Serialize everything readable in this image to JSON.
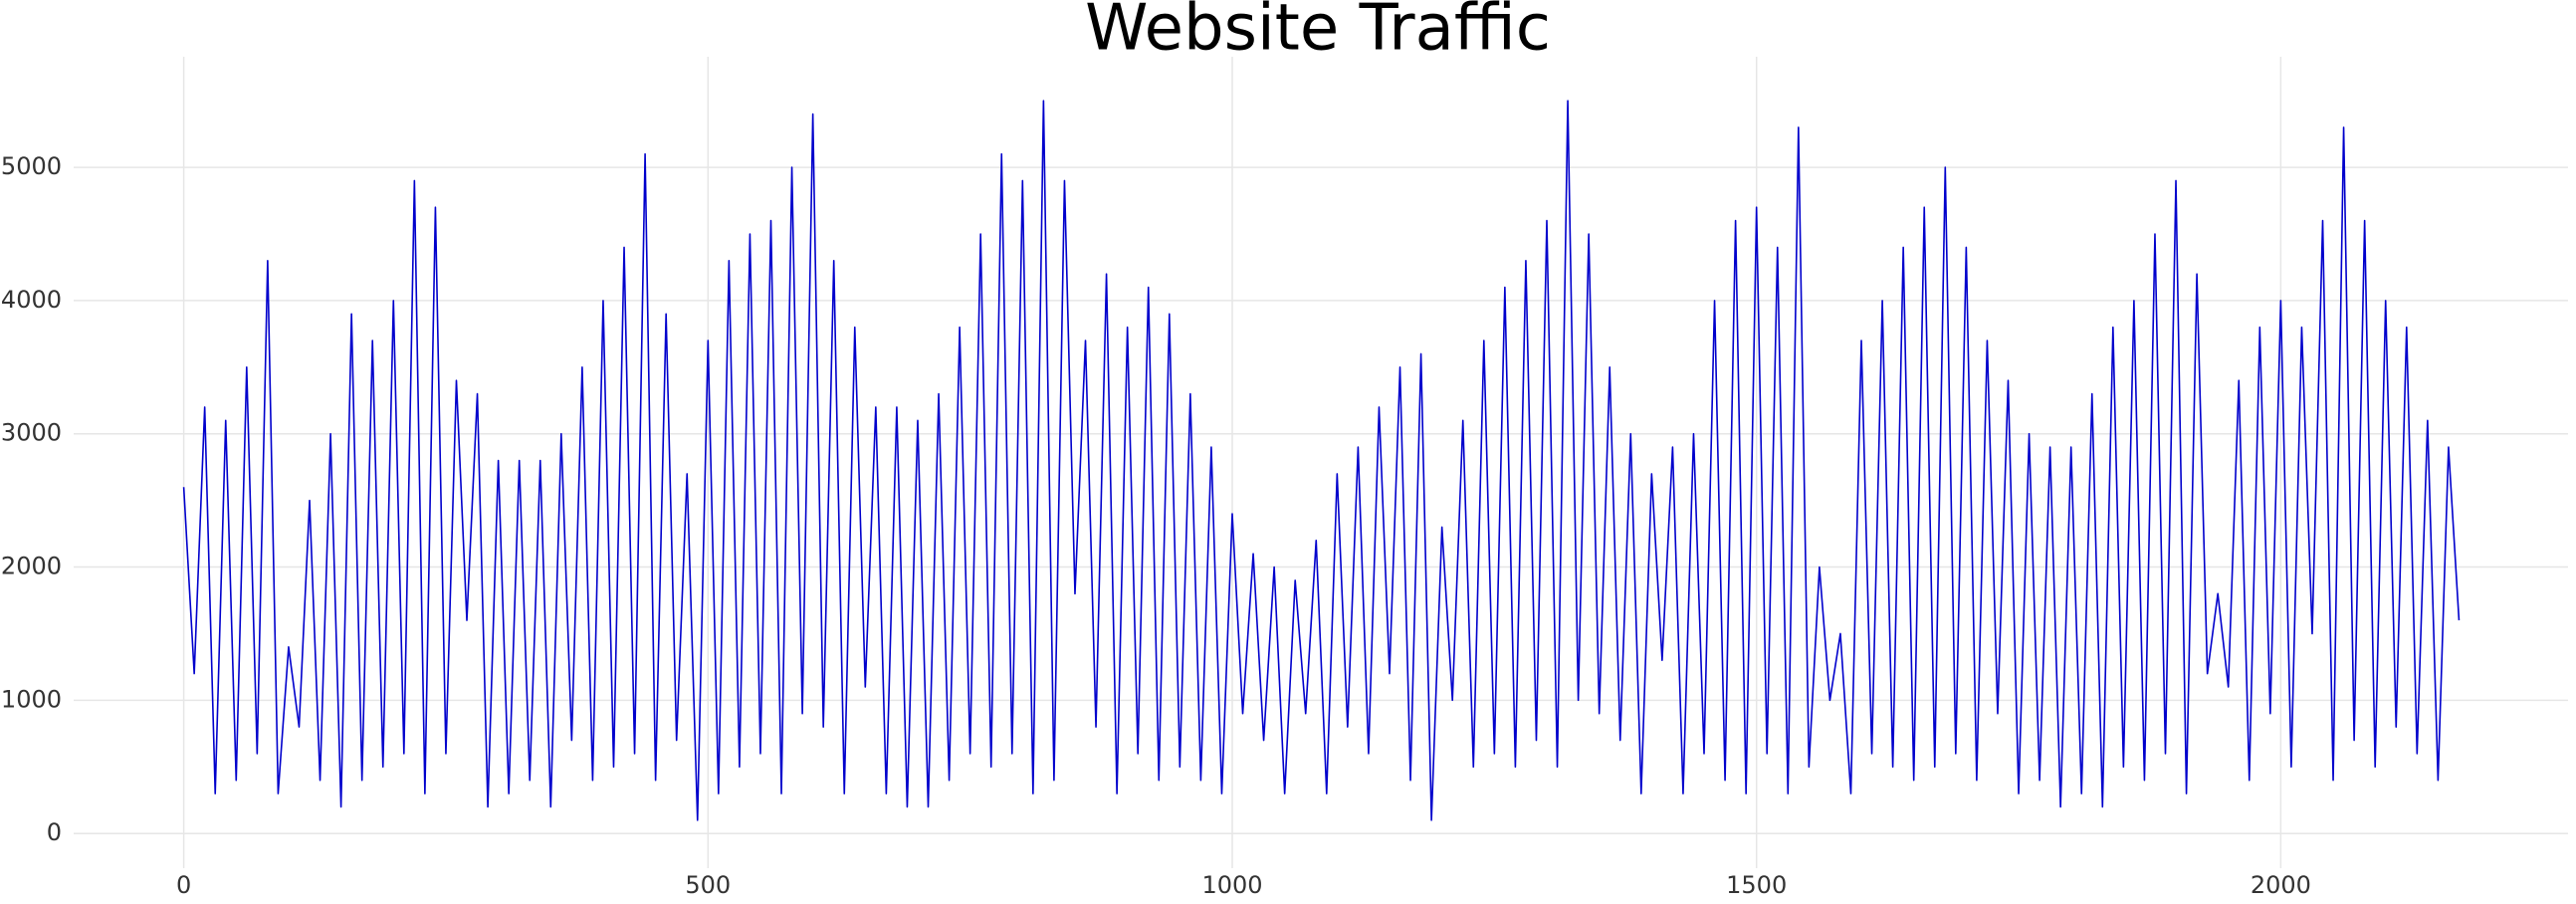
{
  "chart_data": {
    "type": "line",
    "title": "Website Traffic",
    "color": "#0000cc",
    "grid": true,
    "xlim": [
      -105,
      2274
    ],
    "ylim": [
      -260,
      5830
    ],
    "xticks": [
      0,
      500,
      1000,
      1500,
      2000
    ],
    "yticks": [
      0,
      1000,
      2000,
      3000,
      4000,
      5000
    ],
    "x": [
      0,
      10,
      20,
      30,
      40,
      50,
      60,
      70,
      80,
      90,
      100,
      110,
      120,
      130,
      140,
      150,
      160,
      170,
      180,
      190,
      200,
      210,
      220,
      230,
      240,
      250,
      260,
      270,
      280,
      290,
      300,
      310,
      320,
      330,
      340,
      350,
      360,
      370,
      380,
      390,
      400,
      410,
      420,
      430,
      440,
      450,
      460,
      470,
      480,
      490,
      500,
      510,
      520,
      530,
      540,
      550,
      560,
      570,
      580,
      590,
      600,
      610,
      620,
      630,
      640,
      650,
      660,
      670,
      680,
      690,
      700,
      710,
      720,
      730,
      740,
      750,
      760,
      770,
      780,
      790,
      800,
      810,
      820,
      830,
      840,
      850,
      860,
      870,
      880,
      890,
      900,
      910,
      920,
      930,
      940,
      950,
      960,
      970,
      980,
      990,
      1000,
      1010,
      1020,
      1030,
      1040,
      1050,
      1060,
      1070,
      1080,
      1090,
      1100,
      1110,
      1120,
      1130,
      1140,
      1150,
      1160,
      1170,
      1180,
      1190,
      1200,
      1210,
      1220,
      1230,
      1240,
      1250,
      1260,
      1270,
      1280,
      1290,
      1300,
      1310,
      1320,
      1330,
      1340,
      1350,
      1360,
      1370,
      1380,
      1390,
      1400,
      1410,
      1420,
      1430,
      1440,
      1450,
      1460,
      1470,
      1480,
      1490,
      1500,
      1510,
      1520,
      1530,
      1540,
      1550,
      1560,
      1570,
      1580,
      1590,
      1600,
      1610,
      1620,
      1630,
      1640,
      1650,
      1660,
      1670,
      1680,
      1690,
      1700,
      1710,
      1720,
      1730,
      1740,
      1750,
      1760,
      1770,
      1780,
      1790,
      1800,
      1810,
      1820,
      1830,
      1840,
      1850,
      1860,
      1870,
      1880,
      1890,
      1900,
      1910,
      1920,
      1930,
      1940,
      1950,
      1960,
      1970,
      1980,
      1990,
      2000,
      2010,
      2020,
      2030,
      2040,
      2050,
      2060,
      2070,
      2080,
      2090,
      2100,
      2110,
      2120,
      2130,
      2140,
      2150,
      2160,
      2170
    ],
    "values": [
      2600,
      1200,
      3200,
      300,
      3100,
      400,
      3500,
      600,
      4300,
      300,
      1400,
      800,
      2500,
      400,
      3000,
      200,
      3900,
      400,
      3700,
      500,
      4000,
      600,
      4900,
      300,
      4700,
      600,
      3400,
      1600,
      3300,
      200,
      2800,
      300,
      2800,
      400,
      2800,
      200,
      3000,
      700,
      3500,
      400,
      4000,
      500,
      4400,
      600,
      5100,
      400,
      3900,
      700,
      2700,
      100,
      3700,
      300,
      4300,
      500,
      4500,
      600,
      4600,
      300,
      5000,
      900,
      5400,
      800,
      4300,
      300,
      3800,
      1100,
      3200,
      300,
      3200,
      200,
      3100,
      200,
      3300,
      400,
      3800,
      600,
      4500,
      500,
      5100,
      600,
      4900,
      300,
      5500,
      400,
      4900,
      1800,
      3700,
      800,
      4200,
      300,
      3800,
      600,
      4100,
      400,
      3900,
      500,
      3300,
      400,
      2900,
      300,
      2400,
      900,
      2100,
      700,
      2000,
      300,
      1900,
      900,
      2200,
      300,
      2700,
      800,
      2900,
      600,
      3200,
      1200,
      3500,
      400,
      3600,
      100,
      2300,
      1000,
      3100,
      500,
      3700,
      600,
      4100,
      500,
      4300,
      700,
      4600,
      500,
      5500,
      1000,
      4500,
      900,
      3500,
      700,
      3000,
      300,
      2700,
      1300,
      2900,
      300,
      3000,
      600,
      4000,
      400,
      4600,
      300,
      4700,
      600,
      4400,
      300,
      5300,
      500,
      2000,
      1000,
      1500,
      300,
      3700,
      600,
      4000,
      500,
      4400,
      400,
      4700,
      500,
      5000,
      600,
      4400,
      400,
      3700,
      900,
      3400,
      300,
      3000,
      400,
      2900,
      200,
      2900,
      300,
      3300,
      200,
      3800,
      500,
      4000,
      400,
      4500,
      600,
      4900,
      300,
      4200,
      1200,
      1800,
      1100,
      3400,
      400,
      3800,
      900,
      4000,
      500,
      3800,
      1500,
      4600,
      400,
      5300,
      700,
      4600,
      500,
      4000,
      800,
      3800,
      600,
      3100,
      400,
      2900,
      1600
    ]
  }
}
